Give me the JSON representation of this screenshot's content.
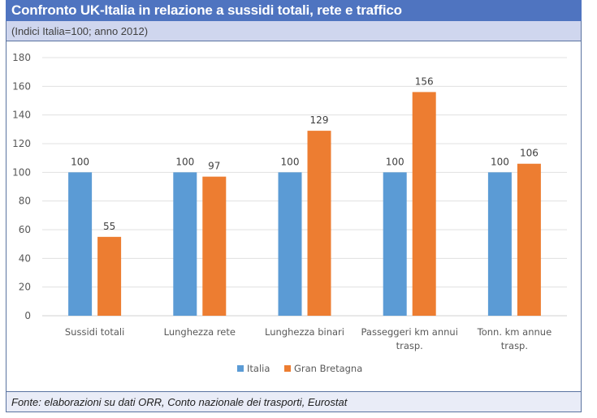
{
  "header": {
    "title": "Confronto UK-Italia in relazione a sussidi totali, rete e traffico",
    "subtitle": "(Indici Italia=100; anno 2012)"
  },
  "footer": {
    "source": "Fonte: elaborazioni su dati ORR, Conto nazionale dei trasporti, Eurostat"
  },
  "colors": {
    "header_bg": "#4f74c0",
    "subtitle_bg": "#cfd6ee",
    "footer_bg": "#e9ecf7",
    "italia": "#5b9bd5",
    "gran_bretagna": "#ed7d31"
  },
  "chart_data": {
    "type": "bar",
    "title": "Confronto UK-Italia in relazione a sussidi totali, rete e traffico",
    "subtitle": "(Indici Italia=100; anno 2012)",
    "categories": [
      [
        "Sussidi totali"
      ],
      [
        "Lunghezza rete"
      ],
      [
        "Lunghezza binari"
      ],
      [
        "Passeggeri km annui",
        "trasp."
      ],
      [
        "Tonn. km annue",
        "trasp."
      ]
    ],
    "series": [
      {
        "name": "Italia",
        "color": "#5b9bd5",
        "values": [
          100,
          100,
          100,
          100,
          100
        ]
      },
      {
        "name": "Gran Bretagna",
        "color": "#ed7d31",
        "values": [
          55,
          97,
          129,
          156,
          106
        ]
      }
    ],
    "xlabel": "",
    "ylabel": "",
    "ylim": [
      0,
      180
    ],
    "yticks": [
      0,
      20,
      40,
      60,
      80,
      100,
      120,
      140,
      160,
      180
    ],
    "grid": true,
    "data_labels": true,
    "legend_position": "bottom"
  }
}
